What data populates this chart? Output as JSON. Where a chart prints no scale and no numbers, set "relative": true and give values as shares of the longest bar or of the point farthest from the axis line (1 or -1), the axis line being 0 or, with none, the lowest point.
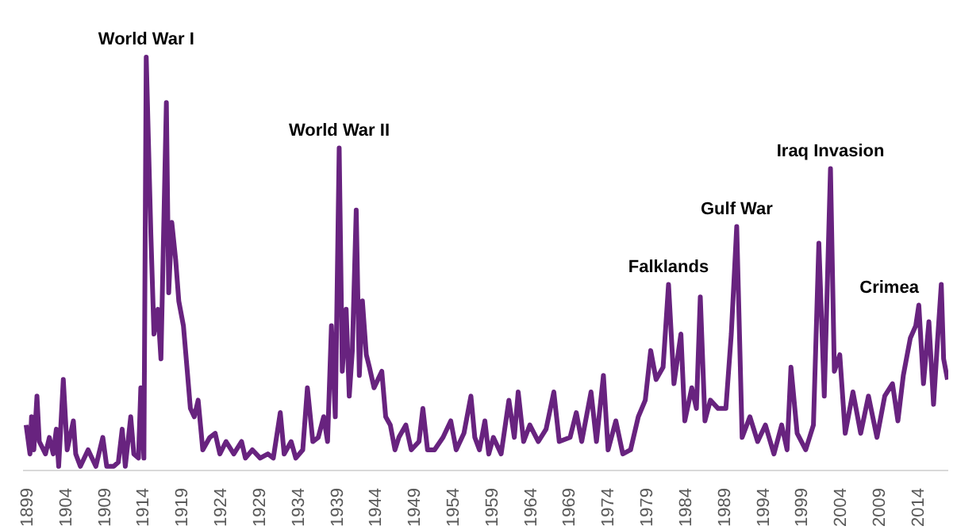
{
  "chart_data": {
    "type": "line",
    "relative": true,
    "grid": false,
    "marker": "none",
    "line_style": "solid",
    "xlim": [
      1898.6,
      2018
    ],
    "xticks": [
      1899,
      1904,
      1909,
      1914,
      1919,
      1924,
      1929,
      1934,
      1939,
      1944,
      1949,
      1954,
      1959,
      1964,
      1969,
      1974,
      1979,
      1984,
      1989,
      1994,
      1999,
      2004,
      2009,
      2014
    ],
    "series": [
      {
        "color": "#68237f",
        "x": [
          1899.0,
          1899.5,
          1899.7,
          1900.0,
          1900.4,
          1900.7,
          1901.5,
          1902.0,
          1902.5,
          1902.9,
          1903.2,
          1903.8,
          1904.3,
          1905.1,
          1905.4,
          1906.0,
          1907.0,
          1908.0,
          1908.9,
          1909.4,
          1910.3,
          1910.9,
          1911.4,
          1911.8,
          1912.5,
          1912.9,
          1913.5,
          1913.8,
          1914.2,
          1914.5,
          1915.1,
          1915.5,
          1916.0,
          1916.4,
          1917.1,
          1917.4,
          1917.8,
          1918.3,
          1918.7,
          1919.3,
          1919.8,
          1920.2,
          1920.7,
          1921.2,
          1921.8,
          1922.7,
          1923.4,
          1924.0,
          1924.8,
          1925.8,
          1926.8,
          1927.3,
          1928.2,
          1929.2,
          1930.2,
          1930.9,
          1931.8,
          1932.3,
          1933.2,
          1933.8,
          1934.7,
          1935.3,
          1936.0,
          1936.7,
          1937.4,
          1937.9,
          1938.4,
          1938.9,
          1939.4,
          1939.8,
          1940.3,
          1940.7,
          1941.1,
          1941.6,
          1942.0,
          1942.4,
          1942.9,
          1943.3,
          1943.9,
          1944.4,
          1944.9,
          1945.4,
          1946.0,
          1946.6,
          1947.1,
          1948.0,
          1948.7,
          1949.7,
          1950.2,
          1950.8,
          1951.7,
          1952.8,
          1953.8,
          1954.5,
          1955.5,
          1956.4,
          1956.9,
          1957.5,
          1958.2,
          1958.7,
          1959.3,
          1960.3,
          1961.3,
          1962.0,
          1962.5,
          1963.2,
          1964.0,
          1965.1,
          1966.1,
          1967.1,
          1967.8,
          1969.2,
          1970.0,
          1970.7,
          1971.9,
          1972.6,
          1973.5,
          1974.1,
          1975.1,
          1976.0,
          1977.0,
          1978.0,
          1978.9,
          1979.6,
          1980.3,
          1981.2,
          1981.9,
          1982.6,
          1983.5,
          1984.0,
          1984.9,
          1985.5,
          1986.0,
          1986.6,
          1987.3,
          1988.3,
          1989.3,
          1990.0,
          1990.7,
          1991.4,
          1992.4,
          1993.4,
          1994.4,
          1995.5,
          1996.5,
          1997.2,
          1997.7,
          1998.5,
          1999.6,
          2000.6,
          2001.3,
          2002.0,
          2002.8,
          2003.3,
          2004.0,
          2004.7,
          2005.7,
          2006.7,
          2007.7,
          2008.8,
          2009.8,
          2010.8,
          2011.5,
          2012.2,
          2013.1,
          2013.8,
          2014.2,
          2014.8,
          2015.5,
          2016.1,
          2016.6,
          2017.1,
          2017.4,
          2017.9
        ],
        "values": [
          0.11,
          0.04,
          0.13,
          0.05,
          0.18,
          0.07,
          0.04,
          0.08,
          0.04,
          0.1,
          0.01,
          0.22,
          0.05,
          0.12,
          0.04,
          0.01,
          0.05,
          0.01,
          0.08,
          0.01,
          0.01,
          0.02,
          0.1,
          0.01,
          0.13,
          0.04,
          0.03,
          0.2,
          0.03,
          1.0,
          0.57,
          0.33,
          0.39,
          0.27,
          0.89,
          0.43,
          0.6,
          0.51,
          0.41,
          0.35,
          0.24,
          0.15,
          0.13,
          0.17,
          0.05,
          0.08,
          0.09,
          0.04,
          0.07,
          0.04,
          0.07,
          0.03,
          0.05,
          0.03,
          0.04,
          0.03,
          0.14,
          0.04,
          0.07,
          0.03,
          0.05,
          0.2,
          0.07,
          0.08,
          0.13,
          0.07,
          0.35,
          0.13,
          0.78,
          0.24,
          0.39,
          0.18,
          0.29,
          0.63,
          0.23,
          0.41,
          0.28,
          0.25,
          0.2,
          0.22,
          0.24,
          0.13,
          0.11,
          0.05,
          0.08,
          0.11,
          0.05,
          0.07,
          0.15,
          0.05,
          0.05,
          0.08,
          0.12,
          0.05,
          0.09,
          0.18,
          0.08,
          0.05,
          0.12,
          0.04,
          0.08,
          0.04,
          0.17,
          0.08,
          0.19,
          0.07,
          0.11,
          0.07,
          0.1,
          0.19,
          0.07,
          0.08,
          0.14,
          0.07,
          0.19,
          0.07,
          0.23,
          0.05,
          0.12,
          0.04,
          0.05,
          0.13,
          0.17,
          0.29,
          0.22,
          0.25,
          0.45,
          0.21,
          0.33,
          0.12,
          0.2,
          0.15,
          0.42,
          0.12,
          0.17,
          0.15,
          0.15,
          0.33,
          0.59,
          0.08,
          0.13,
          0.07,
          0.11,
          0.04,
          0.11,
          0.05,
          0.25,
          0.09,
          0.05,
          0.11,
          0.55,
          0.18,
          0.73,
          0.24,
          0.28,
          0.09,
          0.19,
          0.09,
          0.18,
          0.08,
          0.18,
          0.21,
          0.12,
          0.23,
          0.32,
          0.35,
          0.4,
          0.21,
          0.36,
          0.16,
          0.31,
          0.45,
          0.27,
          0.22
        ]
      }
    ],
    "annotations": [
      {
        "text": "World War I",
        "x": 1914.5,
        "y": 1.0
      },
      {
        "text": "World War II",
        "x": 1939.4,
        "y": 0.78
      },
      {
        "text": "Falklands",
        "x": 1981.9,
        "y": 0.45
      },
      {
        "text": "Gulf War",
        "x": 1990.7,
        "y": 0.59
      },
      {
        "text": "Iraq Invasion",
        "x": 2002.8,
        "y": 0.73
      },
      {
        "text": "Crimea",
        "x": 2014.2,
        "y": 0.4
      }
    ]
  }
}
